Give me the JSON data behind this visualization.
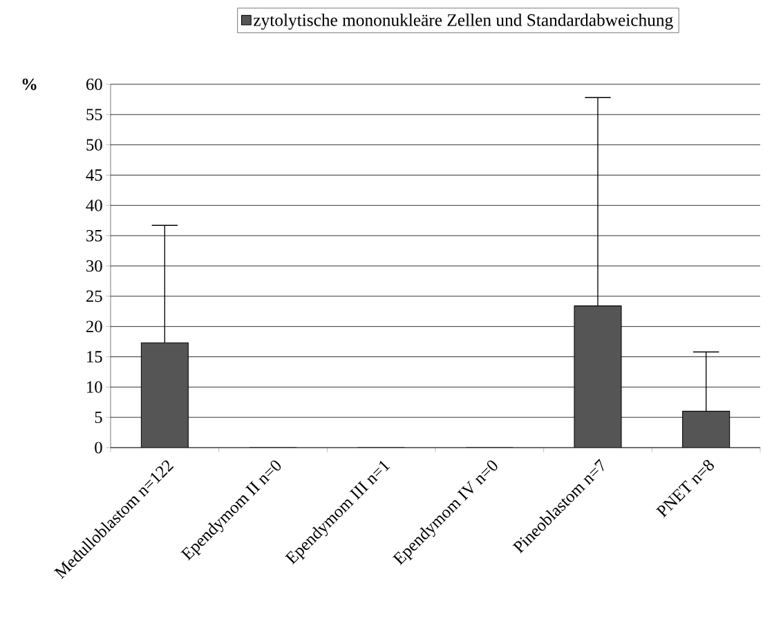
{
  "chart_data": {
    "type": "bar",
    "ylabel": "%",
    "categories": [
      "Medulloblastom n=122",
      "Ependymom II n=0",
      "Ependymom III n=1",
      "Ependymom IV n=0",
      "Pineoblastom n=7",
      "PNET n=8"
    ],
    "series": [
      {
        "name": "zytolytische mononukleäre Zellen und Standardabweichung",
        "color": "#555555",
        "values": [
          17.3,
          0,
          0,
          0,
          23.4,
          6.0
        ],
        "errors": [
          [
            17.3,
            36.7
          ],
          null,
          null,
          null,
          [
            23.4,
            57.8
          ],
          [
            6.0,
            15.8
          ]
        ]
      }
    ],
    "ylim": [
      0,
      60
    ],
    "yticks": [
      0,
      5,
      10,
      15,
      20,
      25,
      30,
      35,
      40,
      45,
      50,
      55,
      60
    ],
    "grid": "y",
    "legend": "top"
  }
}
